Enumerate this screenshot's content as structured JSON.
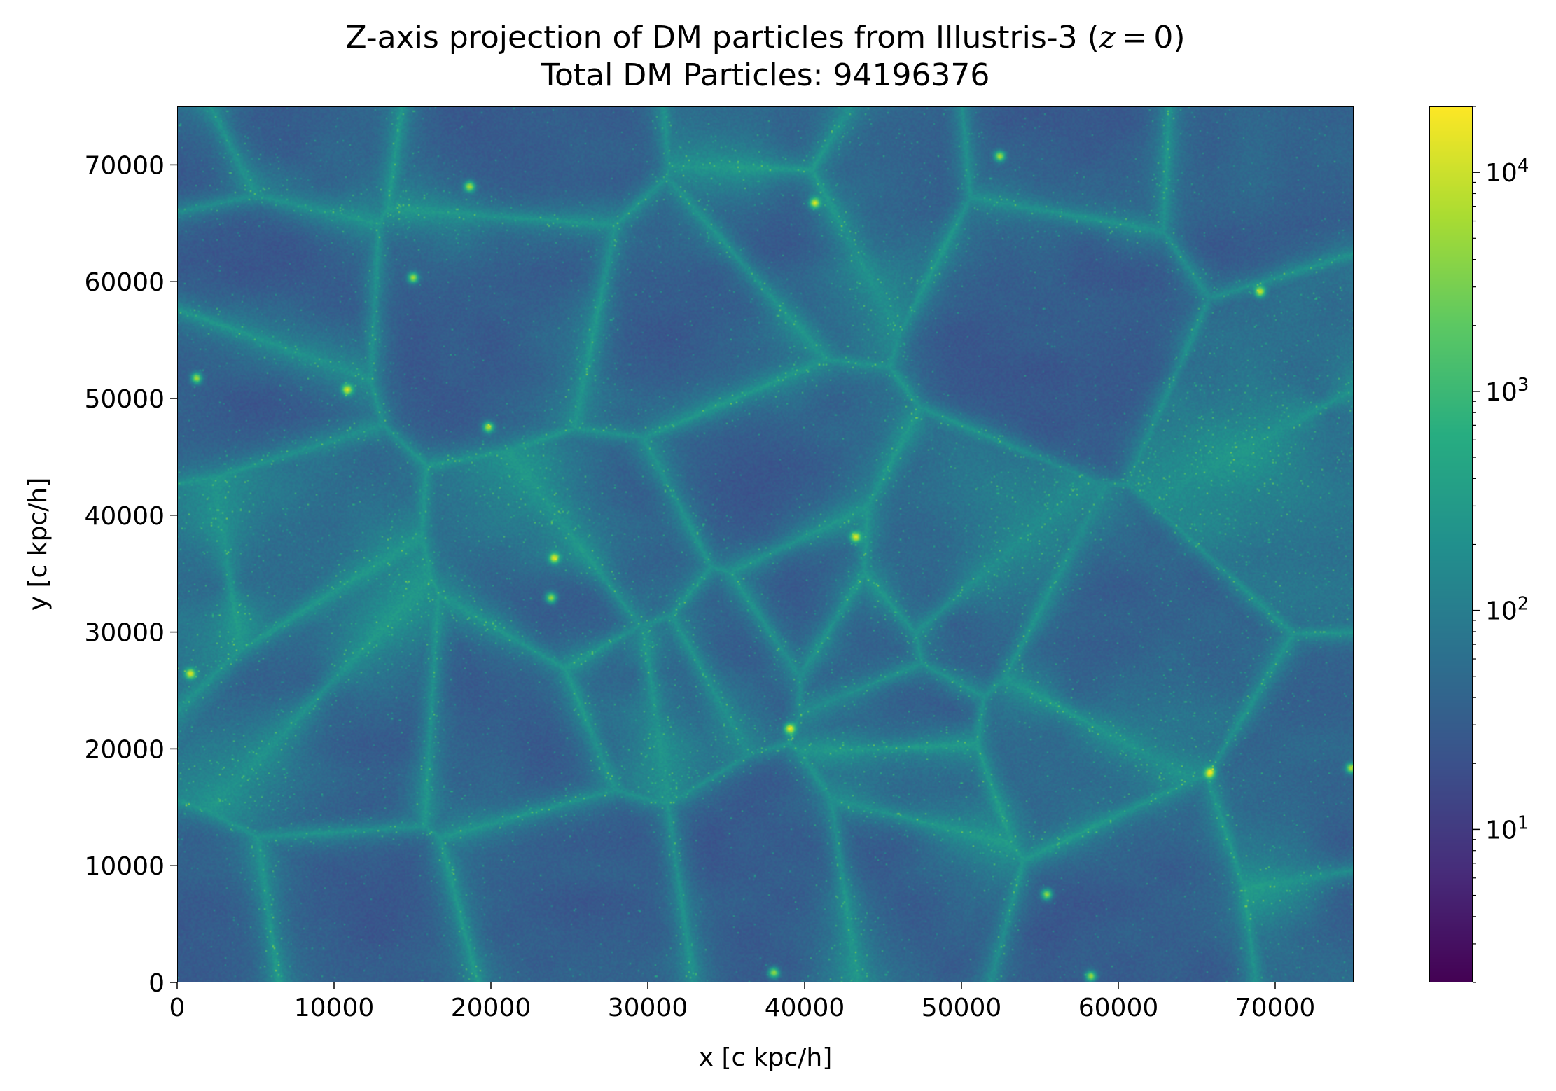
{
  "chart_data": {
    "type": "heatmap",
    "title": "Z-axis projection of DM particles from Illustris-3 (z = 0)",
    "title_parts": {
      "prefix": "Z-axis projection of DM particles from Illustris-3 (",
      "z_symbol": "z",
      "equals": " = 0",
      "suffix": ")"
    },
    "subtitle": "Total DM Particles: 94196376",
    "xlabel": "x [c kpc/h]",
    "ylabel": "y [c kpc/h]",
    "xlim": [
      0,
      75000
    ],
    "ylim": [
      0,
      75000
    ],
    "x_ticks": [
      0,
      10000,
      20000,
      30000,
      40000,
      50000,
      60000,
      70000
    ],
    "y_ticks": [
      0,
      10000,
      20000,
      30000,
      40000,
      50000,
      60000,
      70000
    ],
    "x_tick_labels": [
      "0",
      "10000",
      "20000",
      "30000",
      "40000",
      "50000",
      "60000",
      "70000"
    ],
    "y_tick_labels": [
      "0",
      "10000",
      "20000",
      "30000",
      "40000",
      "50000",
      "60000",
      "70000"
    ],
    "colorbar": {
      "scale": "log",
      "colormap": "viridis",
      "range": [
        2,
        20000
      ],
      "major_ticks": [
        10,
        100,
        1000,
        10000
      ],
      "tick_labels": [
        {
          "base": "10",
          "exp": "1"
        },
        {
          "base": "10",
          "exp": "2"
        },
        {
          "base": "10",
          "exp": "3"
        },
        {
          "base": "10",
          "exp": "4"
        }
      ]
    },
    "grid": false,
    "bright_halos": [
      {
        "x": 800,
        "y": 26500
      },
      {
        "x": 19800,
        "y": 47600
      },
      {
        "x": 23800,
        "y": 33000
      },
      {
        "x": 10800,
        "y": 50800
      },
      {
        "x": 43200,
        "y": 38200
      },
      {
        "x": 40600,
        "y": 66800
      },
      {
        "x": 52400,
        "y": 70800
      },
      {
        "x": 18600,
        "y": 68200
      },
      {
        "x": 69000,
        "y": 59200
      },
      {
        "x": 74800,
        "y": 18400
      },
      {
        "x": 55400,
        "y": 7600
      },
      {
        "x": 39000,
        "y": 21800
      },
      {
        "x": 15000,
        "y": 60400
      },
      {
        "x": 65800,
        "y": 18000
      },
      {
        "x": 24000,
        "y": 36400
      },
      {
        "x": 58200,
        "y": 600
      },
      {
        "x": 38000,
        "y": 900
      },
      {
        "x": 1200,
        "y": 51800
      }
    ]
  }
}
